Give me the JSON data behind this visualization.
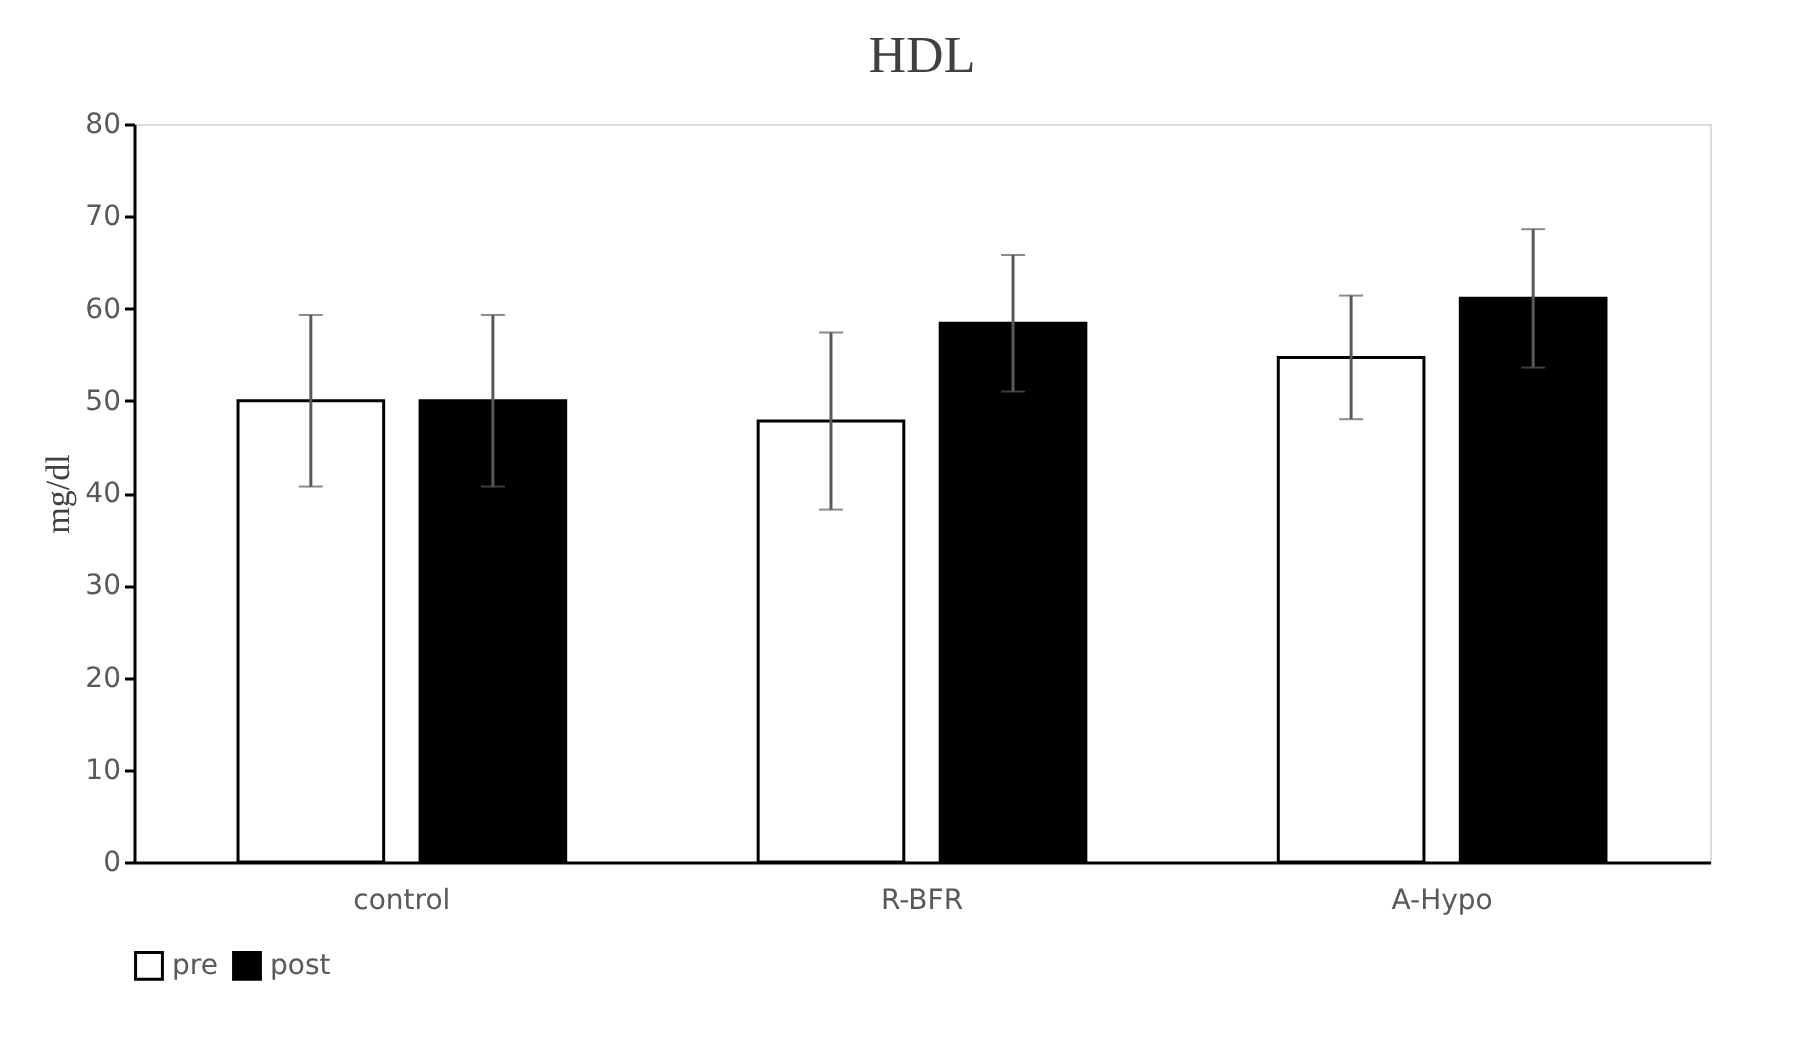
{
  "chart_data": {
    "type": "bar",
    "title": "HDL",
    "ylabel": "mg/dl",
    "categories": [
      "control",
      "R-BFR",
      "A-Hypo"
    ],
    "series": [
      {
        "name": "pre",
        "color": "#ffffff",
        "values": [
          50,
          47.8,
          54.7
        ],
        "errors": [
          9.3,
          9.6,
          6.7
        ]
      },
      {
        "name": "post",
        "color": "#000000",
        "values": [
          50,
          58.4,
          61.1
        ],
        "errors": [
          9.3,
          7.4,
          7.5
        ]
      }
    ],
    "ylim": [
      0,
      80
    ],
    "yticks": [
      0,
      10,
      20,
      30,
      40,
      50,
      60,
      70,
      80
    ],
    "grid": false,
    "legend": "bottom"
  }
}
